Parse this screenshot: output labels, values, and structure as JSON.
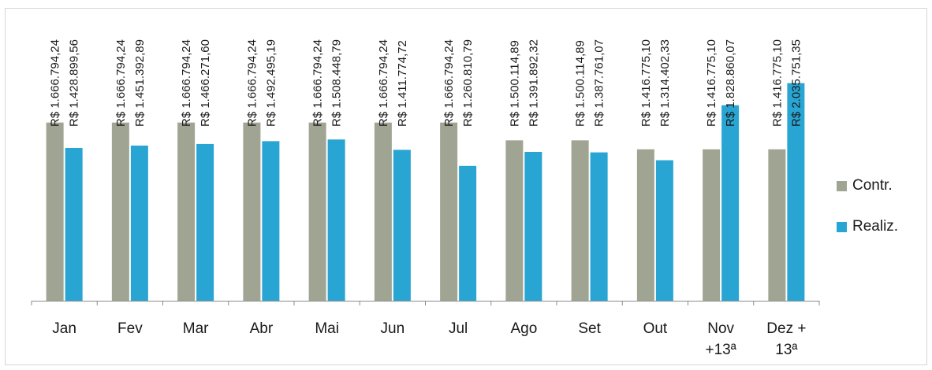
{
  "chart_data": {
    "type": "bar",
    "categories": [
      "Jan",
      "Fev",
      "Mar",
      "Abr",
      "Mai",
      "Jun",
      "Jul",
      "Ago",
      "Set",
      "Out",
      "Nov\n+13ª",
      "Dez +\n13ª"
    ],
    "series": [
      {
        "name": "Contr.",
        "color": "#a0a593",
        "values": [
          1666794.24,
          1666794.24,
          1666794.24,
          1666794.24,
          1666794.24,
          1666794.24,
          1666794.24,
          1500114.89,
          1500114.89,
          1416775.1,
          1416775.1,
          1416775.1
        ],
        "labels": [
          "R$ 1.666.794,24",
          "R$ 1.666.794,24",
          "R$ 1.666.794,24",
          "R$ 1.666.794,24",
          "R$ 1.666.794,24",
          "R$ 1.666.794,24",
          "R$ 1.666.794,24",
          "R$ 1.500.114,89",
          "R$ 1.500.114,89",
          "R$ 1.416.775,10",
          "R$ 1.416.775,10",
          "R$ 1.416.775,10"
        ]
      },
      {
        "name": "Realiz.",
        "color": "#29a5d3",
        "values": [
          1428899.56,
          1451392.89,
          1466271.6,
          1492495.19,
          1508448.79,
          1411774.72,
          1260810.79,
          1391892.32,
          1387761.07,
          1314402.33,
          1828860.07,
          2035751.35
        ],
        "labels": [
          "R$ 1.428.899,56",
          "R$ 1.451.392,89",
          "R$ 1.466.271,60",
          "R$ 1.492.495,19",
          "R$ 1.508.448,79",
          "R$ 1.411.774,72",
          "R$ 1.260.810,79",
          "R$ 1.391.892,32",
          "R$ 1.387.761,07",
          "R$ 1.314.402,33",
          "R$ 1.828.860,07",
          "R$ 2.035.751,35"
        ]
      }
    ],
    "ylim": [
      0,
      2040000
    ],
    "grid": false,
    "legend": "right",
    "title": "",
    "xlabel": "",
    "ylabel": ""
  }
}
